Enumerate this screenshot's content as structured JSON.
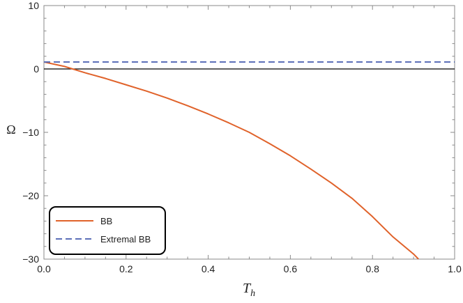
{
  "chart_data": {
    "type": "line",
    "title": "",
    "xlabel": "T",
    "xlabel_subscript": "h",
    "ylabel": "Ω",
    "xlim": [
      0.0,
      1.0
    ],
    "ylim": [
      -30,
      10
    ],
    "x_ticks": [
      0.0,
      0.2,
      0.4,
      0.6,
      0.8,
      1.0
    ],
    "x_tick_labels": [
      "0.0",
      "0.2",
      "0.4",
      "0.6",
      "0.8",
      "1.0"
    ],
    "y_ticks": [
      10,
      0,
      -10,
      -20,
      -30
    ],
    "y_tick_labels": [
      "10",
      "0",
      "−10",
      "−20",
      "−30"
    ],
    "grid": false,
    "reference_line": {
      "y": 0,
      "color": "#000000"
    },
    "legend_position": "bottom-left",
    "series": [
      {
        "name": "BB",
        "style": "solid",
        "color": "#E0622A",
        "x": [
          0.0,
          0.05,
          0.1,
          0.15,
          0.2,
          0.25,
          0.3,
          0.35,
          0.4,
          0.45,
          0.5,
          0.55,
          0.6,
          0.65,
          0.7,
          0.75,
          0.8,
          0.85,
          0.9,
          0.912
        ],
        "y": [
          1.1,
          0.4,
          -0.6,
          -1.5,
          -2.5,
          -3.5,
          -4.6,
          -5.8,
          -7.1,
          -8.5,
          -10.0,
          -11.8,
          -13.7,
          -15.8,
          -18.0,
          -20.4,
          -23.3,
          -26.5,
          -29.2,
          -30.0
        ]
      },
      {
        "name": "Extremal BB",
        "style": "dashed",
        "color": "#5B6FB8",
        "x": [
          0.0,
          1.0
        ],
        "y": [
          1.1,
          1.1
        ]
      }
    ]
  }
}
